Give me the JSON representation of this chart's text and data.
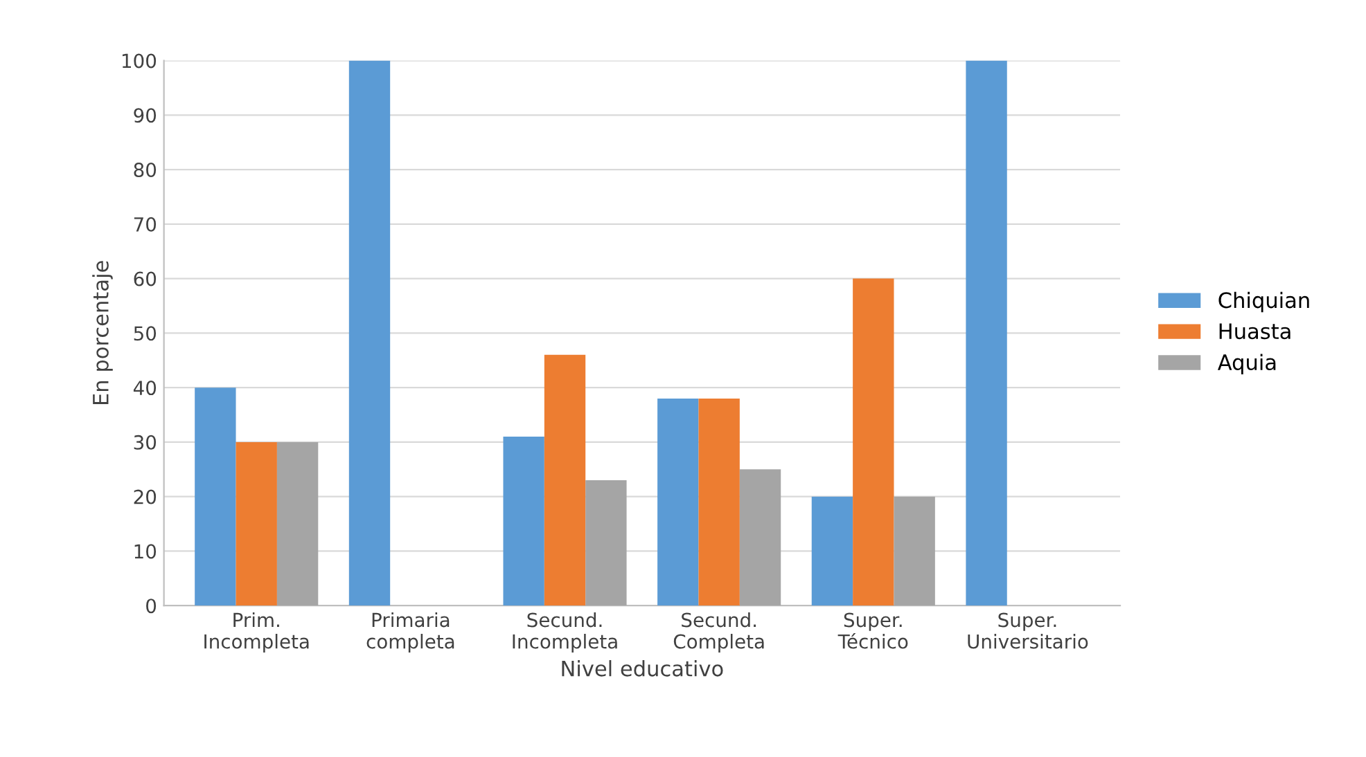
{
  "chart_data": {
    "type": "bar",
    "xlabel": "Nivel educativo",
    "ylabel": "En porcentaje",
    "categories": [
      "Prim.\nIncompleta",
      "Primaria\ncompleta",
      "Secund.\nIncompleta",
      "Secund.\nCompleta",
      "Super.\nTécnico",
      "Super.\nUniversitario"
    ],
    "series": [
      {
        "name": "Chiquian",
        "color": "#5b9bd5",
        "values": [
          40,
          100,
          31,
          38,
          20,
          100
        ]
      },
      {
        "name": "Huasta",
        "color": "#ed7d31",
        "values": [
          30,
          0,
          46,
          38,
          60,
          0
        ]
      },
      {
        "name": "Aquia",
        "color": "#a5a5a5",
        "values": [
          30,
          0,
          23,
          25,
          20,
          0
        ]
      }
    ],
    "ylim": [
      0,
      100
    ],
    "yticks": [
      0,
      10,
      20,
      30,
      40,
      50,
      60,
      70,
      80,
      90,
      100
    ],
    "grid": "y",
    "legend": "right"
  }
}
